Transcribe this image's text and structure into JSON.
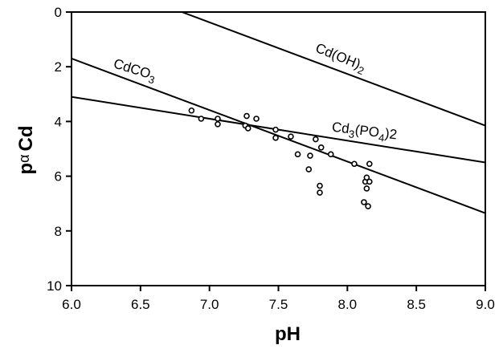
{
  "chart_data": {
    "type": "line",
    "title": "",
    "xlabel": "pH",
    "ylabel": {
      "prefix": "p",
      "greek": "α",
      "suffix": "Cd"
    },
    "xlim": [
      6.0,
      9.0
    ],
    "ylim": [
      0,
      10
    ],
    "y_inverted": true,
    "grid": false,
    "legend": "none",
    "x_ticks": [
      "6.0",
      "6.5",
      "7.0",
      "7.5",
      "8.0",
      "8.5",
      "9.0"
    ],
    "y_ticks": [
      "0",
      "2",
      "4",
      "6",
      "8",
      "10"
    ],
    "series": [
      {
        "name": "Cd(OH)2",
        "label": {
          "main": "Cd(OH)",
          "sub": "2"
        },
        "x": [
          6.8,
          9.0
        ],
        "y": [
          0.0,
          4.15
        ]
      },
      {
        "name": "CdCO3",
        "label": {
          "main": "CdCO",
          "sub": "3"
        },
        "x": [
          6.0,
          9.0
        ],
        "y": [
          1.7,
          7.35
        ]
      },
      {
        "name": "Cd3(PO4)2",
        "label": {
          "main": "Cd",
          "sub": "3",
          "mid": "(PO",
          "sub2": "4",
          "end": ")2"
        },
        "x": [
          6.0,
          9.0
        ],
        "y": [
          3.1,
          5.5
        ]
      }
    ],
    "points": {
      "x": [
        6.87,
        6.94,
        7.06,
        7.06,
        7.26,
        7.27,
        7.28,
        7.34,
        7.48,
        7.48,
        7.59,
        7.64,
        7.72,
        7.73,
        7.77,
        7.81,
        7.8,
        7.8,
        7.88,
        8.05,
        8.12,
        8.13,
        8.14,
        8.14,
        8.15,
        8.16,
        8.16
      ],
      "y": [
        3.6,
        3.9,
        3.9,
        4.1,
        4.15,
        3.8,
        4.25,
        3.9,
        4.3,
        4.6,
        4.55,
        5.2,
        5.75,
        5.25,
        4.65,
        4.95,
        6.35,
        6.6,
        5.2,
        5.55,
        6.95,
        6.2,
        6.05,
        6.45,
        7.1,
        6.2,
        5.55
      ]
    }
  }
}
